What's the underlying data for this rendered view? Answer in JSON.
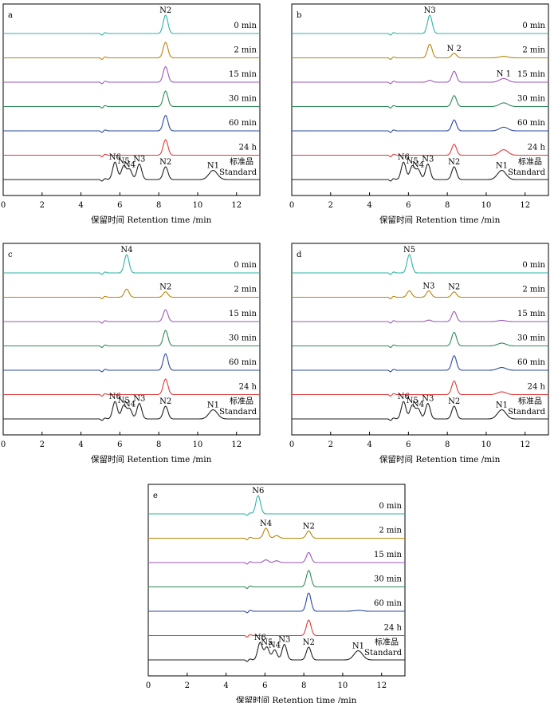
{
  "chart_data": [
    {
      "type": "line",
      "panel": "a",
      "title": "",
      "xlabel": "保留时间 Retention time /min",
      "ylabel": "",
      "xlim": [
        0,
        13.2
      ],
      "xticks": [
        0,
        2,
        4,
        6,
        8,
        10,
        12
      ],
      "grid": false,
      "series": [
        {
          "name": "0 min",
          "color": "#2db3a6",
          "peaks": [
            {
              "rt": 8.35,
              "height": 1.0,
              "label": "N2"
            }
          ]
        },
        {
          "name": "2 min",
          "color": "#b8860b",
          "peaks": [
            {
              "rt": 8.35,
              "height": 0.85
            }
          ]
        },
        {
          "name": "15 min",
          "color": "#9b59b6",
          "peaks": [
            {
              "rt": 8.35,
              "height": 0.85
            }
          ]
        },
        {
          "name": "30 min",
          "color": "#2e8b57",
          "peaks": [
            {
              "rt": 8.35,
              "height": 0.85
            }
          ]
        },
        {
          "name": "60 min",
          "color": "#2b4aa0",
          "peaks": [
            {
              "rt": 8.35,
              "height": 0.85
            }
          ]
        },
        {
          "name": "24 h",
          "color": "#e03a3a",
          "peaks": [
            {
              "rt": 8.35,
              "height": 0.85
            }
          ]
        },
        {
          "name": "标准品 Standard",
          "color": "#222222",
          "peaks": [
            {
              "rt": 5.75,
              "height": 0.95,
              "label": "N6"
            },
            {
              "rt": 6.2,
              "height": 0.75,
              "label": "N5"
            },
            {
              "rt": 6.5,
              "height": 0.55,
              "label": "N4"
            },
            {
              "rt": 7.0,
              "height": 0.85,
              "label": "N3"
            },
            {
              "rt": 8.35,
              "height": 0.7,
              "label": "N2"
            },
            {
              "rt": 10.8,
              "height": 0.5,
              "label": "N1"
            }
          ]
        }
      ]
    },
    {
      "type": "line",
      "panel": "b",
      "title": "",
      "xlabel": "保留时间 Retention time /min",
      "ylabel": "",
      "xlim": [
        0,
        13.2
      ],
      "xticks": [
        0,
        2,
        4,
        6,
        8,
        10,
        12
      ],
      "grid": false,
      "series": [
        {
          "name": "0 min",
          "color": "#2db3a6",
          "peaks": [
            {
              "rt": 7.1,
              "height": 1.0,
              "label": "N3"
            }
          ]
        },
        {
          "name": "2 min",
          "color": "#b8860b",
          "peaks": [
            {
              "rt": 7.1,
              "height": 0.75
            },
            {
              "rt": 8.35,
              "height": 0.25,
              "label": "N 2"
            },
            {
              "rt": 10.9,
              "height": 0.08
            }
          ]
        },
        {
          "name": "15 min",
          "color": "#9b59b6",
          "peaks": [
            {
              "rt": 7.1,
              "height": 0.1
            },
            {
              "rt": 8.35,
              "height": 0.6
            },
            {
              "rt": 10.9,
              "height": 0.2,
              "label": "N 1"
            }
          ]
        },
        {
          "name": "30 min",
          "color": "#2e8b57",
          "peaks": [
            {
              "rt": 8.35,
              "height": 0.6
            },
            {
              "rt": 10.9,
              "height": 0.2
            }
          ]
        },
        {
          "name": "60 min",
          "color": "#2b4aa0",
          "peaks": [
            {
              "rt": 8.35,
              "height": 0.6
            },
            {
              "rt": 10.9,
              "height": 0.2
            }
          ]
        },
        {
          "name": "24 h",
          "color": "#e03a3a",
          "peaks": [
            {
              "rt": 8.35,
              "height": 0.6
            },
            {
              "rt": 10.9,
              "height": 0.3
            }
          ]
        },
        {
          "name": "标准品 Standard",
          "color": "#222222",
          "peaks": [
            {
              "rt": 5.75,
              "height": 0.95,
              "label": "N6"
            },
            {
              "rt": 6.2,
              "height": 0.75,
              "label": "N5"
            },
            {
              "rt": 6.5,
              "height": 0.55,
              "label": "N4"
            },
            {
              "rt": 7.0,
              "height": 0.85,
              "label": "N3"
            },
            {
              "rt": 8.35,
              "height": 0.7,
              "label": "N2"
            },
            {
              "rt": 10.8,
              "height": 0.5,
              "label": "N1"
            }
          ]
        }
      ]
    },
    {
      "type": "line",
      "panel": "c",
      "title": "",
      "xlabel": "保留时间 Retention time /min",
      "ylabel": "",
      "xlim": [
        0,
        13.2
      ],
      "xticks": [
        0,
        2,
        4,
        6,
        8,
        10,
        12
      ],
      "grid": false,
      "series": [
        {
          "name": "0 min",
          "color": "#2db3a6",
          "peaks": [
            {
              "rt": 6.35,
              "height": 1.0,
              "label": "N4"
            }
          ]
        },
        {
          "name": "2 min",
          "color": "#b8860b",
          "peaks": [
            {
              "rt": 6.35,
              "height": 0.45
            },
            {
              "rt": 8.35,
              "height": 0.3,
              "label": "N2"
            }
          ]
        },
        {
          "name": "15 min",
          "color": "#9b59b6",
          "peaks": [
            {
              "rt": 8.35,
              "height": 0.65
            }
          ]
        },
        {
          "name": "30 min",
          "color": "#2e8b57",
          "peaks": [
            {
              "rt": 8.35,
              "height": 0.85
            }
          ]
        },
        {
          "name": "60 min",
          "color": "#2b4aa0",
          "peaks": [
            {
              "rt": 8.35,
              "height": 0.9
            }
          ]
        },
        {
          "name": "24 h",
          "color": "#e03a3a",
          "peaks": [
            {
              "rt": 8.35,
              "height": 0.85
            }
          ]
        },
        {
          "name": "标准品 Standard",
          "color": "#222222",
          "peaks": [
            {
              "rt": 5.75,
              "height": 0.95,
              "label": "N6"
            },
            {
              "rt": 6.2,
              "height": 0.75,
              "label": "N5"
            },
            {
              "rt": 6.5,
              "height": 0.55,
              "label": "N4"
            },
            {
              "rt": 7.0,
              "height": 0.85,
              "label": "N3"
            },
            {
              "rt": 8.35,
              "height": 0.7,
              "label": "N2"
            },
            {
              "rt": 10.8,
              "height": 0.5,
              "label": "N1"
            }
          ]
        }
      ]
    },
    {
      "type": "line",
      "panel": "d",
      "title": "",
      "xlabel": "保留时间 Retention time /min",
      "ylabel": "",
      "xlim": [
        0,
        13.2
      ],
      "xticks": [
        0,
        2,
        4,
        6,
        8,
        10,
        12
      ],
      "grid": false,
      "series": [
        {
          "name": "0 min",
          "color": "#2db3a6",
          "peaks": [
            {
              "rt": 6.05,
              "height": 1.0,
              "label": "N5"
            }
          ]
        },
        {
          "name": "2 min",
          "color": "#b8860b",
          "peaks": [
            {
              "rt": 6.05,
              "height": 0.35
            },
            {
              "rt": 7.05,
              "height": 0.35,
              "label": "N3"
            },
            {
              "rt": 8.35,
              "height": 0.3,
              "label": "N2"
            }
          ]
        },
        {
          "name": "15 min",
          "color": "#9b59b6",
          "peaks": [
            {
              "rt": 7.05,
              "height": 0.08
            },
            {
              "rt": 8.35,
              "height": 0.55
            },
            {
              "rt": 10.8,
              "height": 0.06
            }
          ]
        },
        {
          "name": "30 min",
          "color": "#2e8b57",
          "peaks": [
            {
              "rt": 8.35,
              "height": 0.75
            },
            {
              "rt": 10.8,
              "height": 0.15
            }
          ]
        },
        {
          "name": "60 min",
          "color": "#2b4aa0",
          "peaks": [
            {
              "rt": 8.35,
              "height": 0.8
            },
            {
              "rt": 10.8,
              "height": 0.15
            }
          ]
        },
        {
          "name": "24 h",
          "color": "#e03a3a",
          "peaks": [
            {
              "rt": 8.35,
              "height": 0.75
            },
            {
              "rt": 10.8,
              "height": 0.15
            }
          ]
        },
        {
          "name": "标准品 Standard",
          "color": "#222222",
          "peaks": [
            {
              "rt": 5.75,
              "height": 0.95,
              "label": "N6"
            },
            {
              "rt": 6.2,
              "height": 0.75,
              "label": "N5"
            },
            {
              "rt": 6.5,
              "height": 0.55,
              "label": "N4"
            },
            {
              "rt": 7.0,
              "height": 0.85,
              "label": "N3"
            },
            {
              "rt": 8.35,
              "height": 0.7,
              "label": "N2"
            },
            {
              "rt": 10.8,
              "height": 0.5,
              "label": "N1"
            }
          ]
        }
      ]
    },
    {
      "type": "line",
      "panel": "e",
      "title": "",
      "xlabel": "保留时间 Retention time /min",
      "ylabel": "",
      "xlim": [
        0,
        13.2
      ],
      "xticks": [
        0,
        2,
        4,
        6,
        8,
        10,
        12
      ],
      "grid": false,
      "series": [
        {
          "name": "0 min",
          "color": "#2db3a6",
          "peaks": [
            {
              "rt": 5.65,
              "height": 1.0,
              "label": "N6"
            }
          ]
        },
        {
          "name": "2 min",
          "color": "#b8860b",
          "peaks": [
            {
              "rt": 6.05,
              "height": 0.55,
              "label": "N4"
            },
            {
              "rt": 6.6,
              "height": 0.15
            },
            {
              "rt": 8.25,
              "height": 0.4,
              "label": "N2"
            }
          ]
        },
        {
          "name": "15 min",
          "color": "#9b59b6",
          "peaks": [
            {
              "rt": 6.05,
              "height": 0.15
            },
            {
              "rt": 6.6,
              "height": 0.1
            },
            {
              "rt": 8.25,
              "height": 0.55
            }
          ]
        },
        {
          "name": "30 min",
          "color": "#2e8b57",
          "peaks": [
            {
              "rt": 8.25,
              "height": 0.9
            }
          ]
        },
        {
          "name": "60 min",
          "color": "#2b4aa0",
          "peaks": [
            {
              "rt": 8.25,
              "height": 1.0
            },
            {
              "rt": 10.8,
              "height": 0.05
            }
          ]
        },
        {
          "name": "24 h",
          "color": "#e03a3a",
          "peaks": [
            {
              "rt": 8.25,
              "height": 0.85
            }
          ]
        },
        {
          "name": "标准品 Standard",
          "color": "#222222",
          "peaks": [
            {
              "rt": 5.75,
              "height": 0.95,
              "label": "N6"
            },
            {
              "rt": 6.1,
              "height": 0.7,
              "label": "N5"
            },
            {
              "rt": 6.5,
              "height": 0.55,
              "label": "N4"
            },
            {
              "rt": 7.0,
              "height": 0.85,
              "label": "N3"
            },
            {
              "rt": 8.25,
              "height": 0.7,
              "label": "N2"
            },
            {
              "rt": 10.8,
              "height": 0.5,
              "label": "N1"
            }
          ]
        }
      ]
    }
  ]
}
